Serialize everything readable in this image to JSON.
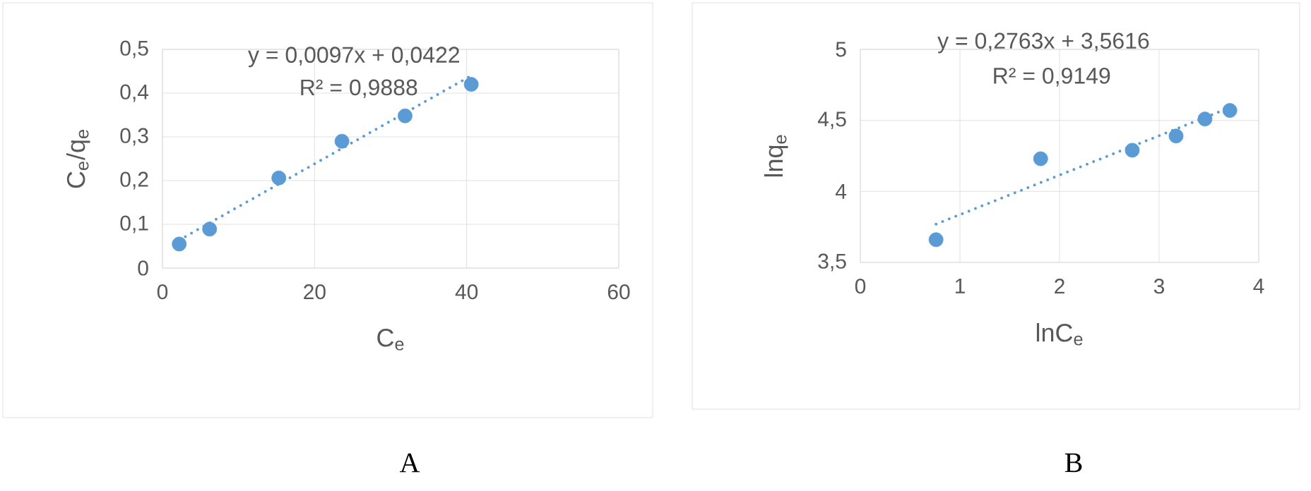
{
  "chart_data": [
    {
      "type": "scatter",
      "xlabel": "C$_{e}$",
      "ylabel": "C$_{e}$/q$_{e}$",
      "xlim": [
        0,
        60
      ],
      "ylim": [
        0,
        0.5
      ],
      "xticks": [
        0,
        20,
        40,
        60
      ],
      "yticks": [
        0,
        {
          "value": 0.1,
          "label": "0,1"
        },
        {
          "value": 0.2,
          "label": "0,2"
        },
        {
          "value": 0.3,
          "label": "0,3"
        },
        {
          "value": 0.4,
          "label": "0,4"
        },
        {
          "value": 0.5,
          "label": "0,5"
        }
      ],
      "grid": true,
      "marker": "circle",
      "series": [
        {
          "color": "#5b9bd5",
          "x": [
            2.2,
            6.2,
            15.3,
            23.6,
            31.9,
            40.6
          ],
          "values": [
            0.055,
            0.089,
            0.206,
            0.29,
            0.348,
            0.42
          ]
        },
        {
          "type": "line",
          "line_style": "dotted",
          "marker": "none",
          "color": "#5b9bd5",
          "x": [
            2.2,
            40.6
          ],
          "values": [
            0.064,
            0.44
          ]
        }
      ],
      "annotations": [
        "y = 0,0097x + 0,0422",
        "R² = 0,9888",
        "A"
      ]
    },
    {
      "type": "scatter",
      "xlabel": "lnC$_{e}$",
      "ylabel": "lnq$_{e}$",
      "xlim": [
        0,
        4
      ],
      "ylim": [
        3.5,
        5
      ],
      "xticks": [
        0,
        1,
        2,
        3,
        4
      ],
      "yticks": [
        {
          "value": 3.5,
          "label": "3,5"
        },
        4,
        {
          "value": 4.5,
          "label": "4,5"
        },
        5
      ],
      "grid": true,
      "marker": "circle",
      "series": [
        {
          "color": "#5b9bd5",
          "x": [
            0.76,
            1.81,
            2.73,
            3.17,
            3.46,
            3.71
          ],
          "values": [
            3.66,
            4.23,
            4.29,
            4.39,
            4.51,
            4.57
          ]
        },
        {
          "type": "line",
          "line_style": "dotted",
          "marker": "none",
          "color": "#5b9bd5",
          "x": [
            0.76,
            3.71
          ],
          "values": [
            3.77,
            4.59
          ]
        }
      ],
      "annotations": [
        "y = 0,2763x + 3,5616",
        "R² = 0,9149",
        "B"
      ]
    }
  ]
}
